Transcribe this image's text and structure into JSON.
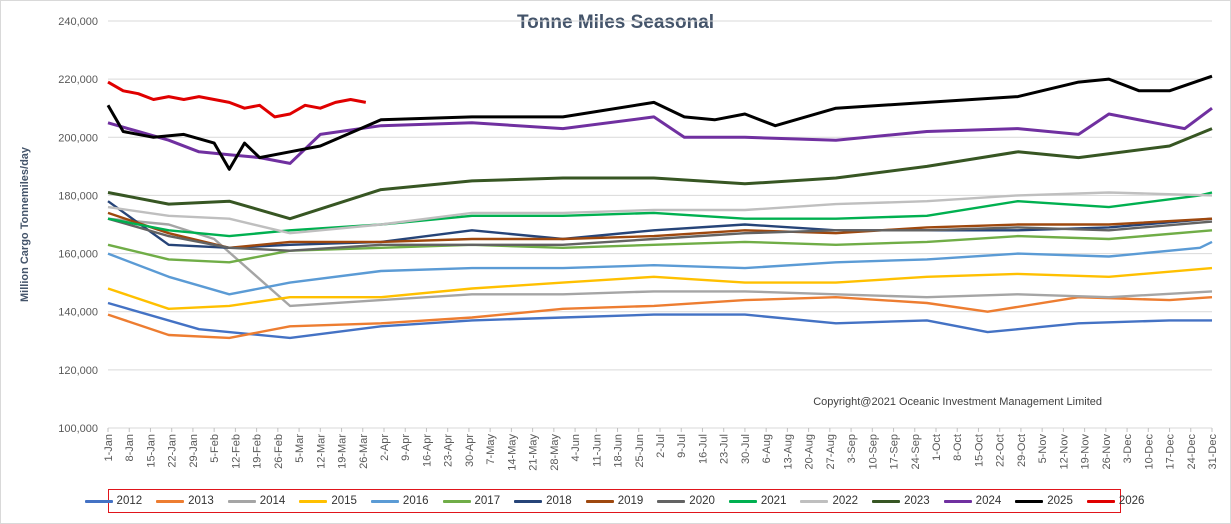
{
  "chart_data": {
    "type": "line",
    "title": "Tonne Miles Seasonal",
    "ylabel": "Million Cargo Tonnemiles/day",
    "xlabel": "",
    "ylim": [
      100000,
      240000
    ],
    "y_ticks": [
      "100,000",
      "120,000",
      "140,000",
      "160,000",
      "180,000",
      "200,000",
      "220,000",
      "240,000"
    ],
    "x_ticks": [
      "1-Jan",
      "8-Jan",
      "15-Jan",
      "22-Jan",
      "29-Jan",
      "5-Feb",
      "12-Feb",
      "19-Feb",
      "26-Feb",
      "5-Mar",
      "12-Mar",
      "19-Mar",
      "26-Mar",
      "2-Apr",
      "9-Apr",
      "16-Apr",
      "23-Apr",
      "30-Apr",
      "7-May",
      "14-May",
      "21-May",
      "28-May",
      "4-Jun",
      "11-Jun",
      "18-Jun",
      "25-Jun",
      "2-Jul",
      "9-Jul",
      "16-Jul",
      "23-Jul",
      "30-Jul",
      "6-Aug",
      "13-Aug",
      "20-Aug",
      "27-Aug",
      "3-Sep",
      "10-Sep",
      "17-Sep",
      "24-Sep",
      "1-Oct",
      "8-Oct",
      "15-Oct",
      "22-Oct",
      "29-Oct",
      "5-Nov",
      "12-Nov",
      "19-Nov",
      "26-Nov",
      "3-Dec",
      "10-Dec",
      "17-Dec",
      "24-Dec",
      "31-Dec"
    ],
    "x_domain": [
      0,
      364
    ],
    "grid": "horizontal",
    "legend_position": "bottom",
    "annotation": "Copyright@2021 Oceanic Investment Management Limited",
    "series": [
      {
        "name": "2012",
        "color": "#4472c4",
        "x": [
          0,
          30,
          60,
          90,
          120,
          150,
          180,
          210,
          240,
          270,
          290,
          300,
          320,
          350,
          364
        ],
        "y": [
          143000,
          134000,
          131000,
          135000,
          137000,
          138000,
          139000,
          139000,
          136000,
          137000,
          133000,
          134000,
          136000,
          137000,
          137000
        ]
      },
      {
        "name": "2013",
        "color": "#ed7d31",
        "x": [
          0,
          20,
          40,
          60,
          90,
          120,
          150,
          180,
          210,
          240,
          270,
          290,
          320,
          350,
          364
        ],
        "y": [
          139000,
          132000,
          131000,
          135000,
          136000,
          138000,
          141000,
          142000,
          144000,
          145000,
          143000,
          140000,
          145000,
          144000,
          145000
        ]
      },
      {
        "name": "2014",
        "color": "#a5a5a5",
        "x": [
          0,
          20,
          35,
          60,
          90,
          120,
          150,
          180,
          210,
          240,
          270,
          300,
          330,
          364
        ],
        "y": [
          172000,
          170000,
          165000,
          142000,
          144000,
          146000,
          146000,
          147000,
          147000,
          146000,
          145000,
          146000,
          145000,
          147000
        ]
      },
      {
        "name": "2015",
        "color": "#ffc000",
        "x": [
          0,
          20,
          40,
          60,
          90,
          120,
          150,
          180,
          210,
          240,
          270,
          300,
          330,
          364
        ],
        "y": [
          148000,
          141000,
          142000,
          145000,
          145000,
          148000,
          150000,
          152000,
          150000,
          150000,
          152000,
          153000,
          152000,
          155000
        ]
      },
      {
        "name": "2016",
        "color": "#5b9bd5",
        "x": [
          0,
          20,
          40,
          60,
          90,
          120,
          150,
          180,
          210,
          240,
          270,
          300,
          330,
          360,
          364
        ],
        "y": [
          160000,
          152000,
          146000,
          150000,
          154000,
          155000,
          155000,
          156000,
          155000,
          157000,
          158000,
          160000,
          159000,
          162000,
          164000
        ]
      },
      {
        "name": "2017",
        "color": "#70ad47",
        "x": [
          0,
          20,
          40,
          60,
          90,
          120,
          150,
          180,
          210,
          240,
          270,
          300,
          330,
          364
        ],
        "y": [
          163000,
          158000,
          157000,
          161000,
          162000,
          163000,
          162000,
          163000,
          164000,
          163000,
          164000,
          166000,
          165000,
          168000
        ]
      },
      {
        "name": "2018",
        "color": "#264478",
        "x": [
          0,
          20,
          40,
          60,
          90,
          120,
          150,
          180,
          210,
          240,
          270,
          300,
          330,
          364
        ],
        "y": [
          178000,
          163000,
          162000,
          163000,
          164000,
          168000,
          165000,
          168000,
          170000,
          168000,
          168000,
          168000,
          169000,
          172000
        ]
      },
      {
        "name": "2019",
        "color": "#9e480e",
        "x": [
          0,
          20,
          40,
          60,
          90,
          120,
          150,
          180,
          210,
          240,
          270,
          300,
          330,
          364
        ],
        "y": [
          174000,
          167000,
          162000,
          164000,
          164000,
          165000,
          165000,
          166000,
          168000,
          167000,
          169000,
          170000,
          170000,
          172000
        ]
      },
      {
        "name": "2020",
        "color": "#636363",
        "x": [
          0,
          20,
          40,
          60,
          90,
          120,
          150,
          180,
          210,
          240,
          270,
          300,
          330,
          364
        ],
        "y": [
          172000,
          166000,
          162000,
          161000,
          163000,
          163000,
          163000,
          165000,
          167000,
          168000,
          168000,
          169000,
          168000,
          171000
        ]
      },
      {
        "name": "2021",
        "color": "#00b050",
        "x": [
          0,
          20,
          40,
          60,
          90,
          120,
          150,
          180,
          210,
          240,
          270,
          300,
          330,
          360,
          364
        ],
        "y": [
          172000,
          168000,
          166000,
          168000,
          170000,
          173000,
          173000,
          174000,
          172000,
          172000,
          173000,
          178000,
          176000,
          180000,
          181000
        ]
      },
      {
        "name": "2022",
        "color": "#bfbfbf",
        "x": [
          0,
          20,
          40,
          60,
          90,
          120,
          150,
          180,
          210,
          240,
          270,
          300,
          330,
          364
        ],
        "y": [
          176000,
          173000,
          172000,
          167000,
          170000,
          174000,
          174000,
          175000,
          175000,
          177000,
          178000,
          180000,
          181000,
          180000
        ]
      },
      {
        "name": "2023",
        "color": "#375623",
        "x": [
          0,
          20,
          40,
          60,
          90,
          120,
          150,
          180,
          210,
          240,
          270,
          300,
          320,
          350,
          364
        ],
        "y": [
          181000,
          177000,
          178000,
          172000,
          182000,
          185000,
          186000,
          186000,
          184000,
          186000,
          190000,
          195000,
          193000,
          197000,
          203000
        ]
      },
      {
        "name": "2024",
        "color": "#7030a0",
        "x": [
          0,
          10,
          20,
          30,
          40,
          50,
          60,
          70,
          90,
          120,
          150,
          180,
          190,
          210,
          240,
          270,
          300,
          320,
          330,
          345,
          355,
          364
        ],
        "y": [
          205000,
          202000,
          199000,
          195000,
          194000,
          193000,
          191000,
          201000,
          204000,
          205000,
          203000,
          207000,
          200000,
          200000,
          199000,
          202000,
          203000,
          201000,
          208000,
          205000,
          203000,
          210000
        ]
      },
      {
        "name": "2025",
        "color": "#000000",
        "x": [
          0,
          5,
          15,
          25,
          35,
          40,
          45,
          50,
          60,
          70,
          90,
          120,
          150,
          180,
          190,
          200,
          210,
          220,
          240,
          270,
          300,
          320,
          330,
          340,
          350,
          364
        ],
        "y": [
          211000,
          202000,
          200000,
          201000,
          198000,
          189000,
          198000,
          193000,
          195000,
          197000,
          206000,
          207000,
          207000,
          212000,
          207000,
          206000,
          208000,
          204000,
          210000,
          212000,
          214000,
          219000,
          220000,
          216000,
          216000,
          221000
        ]
      },
      {
        "name": "2026",
        "color": "#e00000",
        "x": [
          0,
          5,
          10,
          15,
          20,
          25,
          30,
          35,
          40,
          45,
          50,
          55,
          60,
          65,
          70,
          75,
          80,
          85
        ],
        "y": [
          219000,
          216000,
          215000,
          213000,
          214000,
          213000,
          214000,
          213000,
          212000,
          210000,
          211000,
          207000,
          208000,
          211000,
          210000,
          212000,
          213000,
          212000
        ]
      }
    ]
  }
}
